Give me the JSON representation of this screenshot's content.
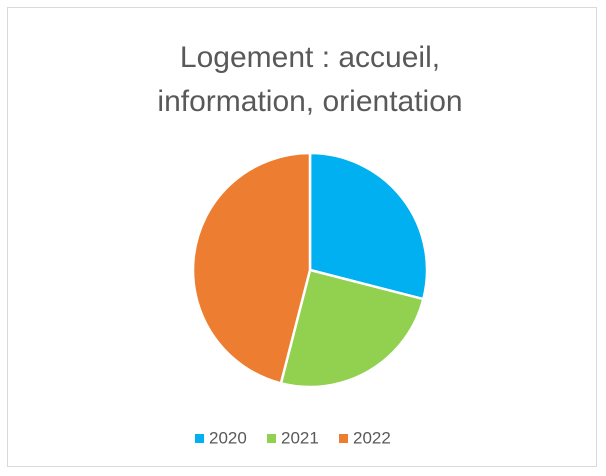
{
  "chart_data": {
    "type": "pie",
    "title": "Logement : accueil, information, orientation",
    "categories": [
      "2020",
      "2021",
      "2022"
    ],
    "values": [
      29,
      25,
      46
    ],
    "colors": [
      "#00b0f0",
      "#92d050",
      "#ed7d31"
    ],
    "legend": "bottom"
  }
}
